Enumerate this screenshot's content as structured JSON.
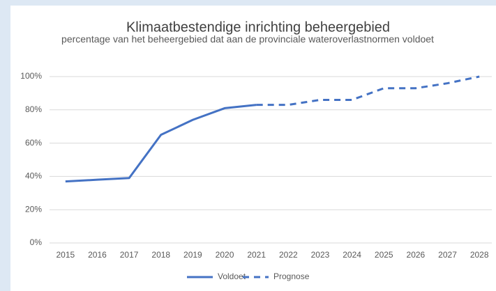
{
  "chart_data": {
    "type": "line",
    "title": "Klimaatbestendige inrichting beheergebied",
    "subtitle": "percentage van het beheergebied dat aan de provinciale wateroverlastnormen voldoet",
    "categories": [
      "2015",
      "2016",
      "2017",
      "2018",
      "2019",
      "2020",
      "2021",
      "2022",
      "2023",
      "2024",
      "2025",
      "2026",
      "2027",
      "2028"
    ],
    "series": [
      {
        "name": "Voldoet",
        "color": "#4472c4",
        "dash": false,
        "values": [
          37,
          38,
          39,
          65,
          74,
          81,
          83,
          null,
          null,
          null,
          null,
          null,
          null,
          null
        ]
      },
      {
        "name": "Prognose",
        "color": "#4472c4",
        "dash": true,
        "values": [
          null,
          null,
          null,
          null,
          null,
          null,
          83,
          83,
          86,
          86,
          93,
          93,
          96,
          100
        ]
      }
    ],
    "ylim": [
      0,
      100
    ],
    "yticks": [
      {
        "value": 0,
        "label": "0%"
      },
      {
        "value": 20,
        "label": "20%"
      },
      {
        "value": 40,
        "label": "40%"
      },
      {
        "value": 60,
        "label": "60%"
      },
      {
        "value": 80,
        "label": "80%"
      },
      {
        "value": 100,
        "label": "100%"
      }
    ],
    "grid": true,
    "legend": "bottom"
  }
}
